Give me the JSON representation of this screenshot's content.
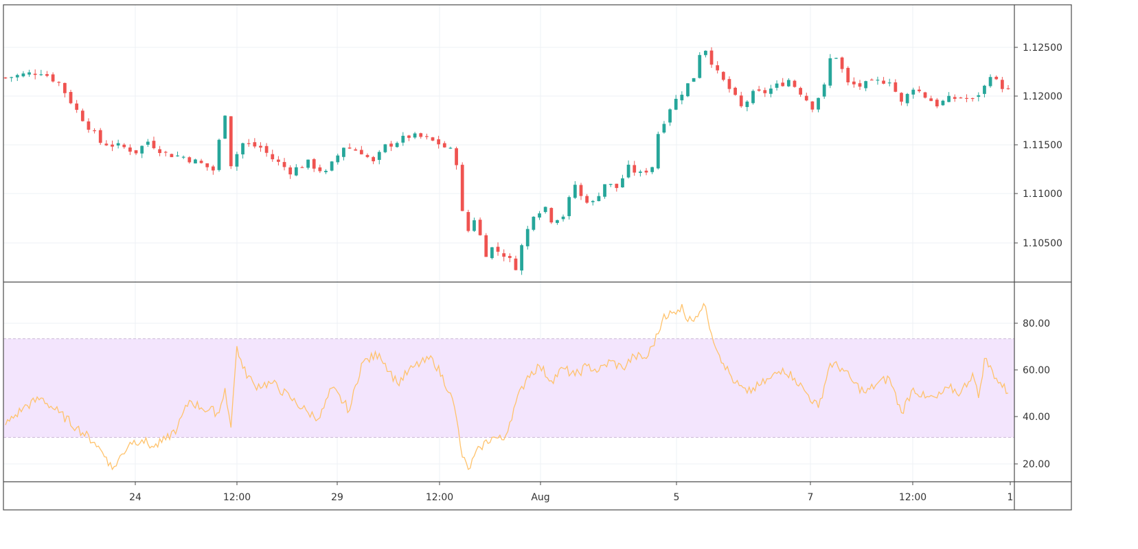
{
  "chart_data": [
    {
      "type": "candlestick",
      "title": "",
      "x": {
        "tick_labels": [
          "24",
          "12:00",
          "29",
          "12:00",
          "Aug",
          "5",
          "7",
          "12:00",
          "1"
        ]
      },
      "y": {
        "tick_labels": [
          "1.12500",
          "1.12000",
          "1.11500",
          "1.11000",
          "1.10500"
        ],
        "ylim": [
          1.1015,
          1.1285
        ]
      },
      "grid": true,
      "colors": {
        "up": "#26a69a",
        "down": "#ef5350"
      },
      "series": [
        {
          "close_path": [
            [
              0,
              1.1214
            ],
            [
              4,
              1.1218
            ],
            [
              6,
              1.122
            ],
            [
              9,
              1.1209
            ],
            [
              12,
              1.1182
            ],
            [
              16,
              1.1151
            ],
            [
              20,
              1.1146
            ],
            [
              22,
              1.1142
            ],
            [
              24,
              1.1152
            ],
            [
              27,
              1.114
            ],
            [
              30,
              1.1137
            ],
            [
              33,
              1.113
            ],
            [
              35,
              1.1124
            ],
            [
              36,
              1.1152
            ],
            [
              37,
              1.118
            ],
            [
              38,
              1.113
            ],
            [
              40,
              1.115
            ],
            [
              43,
              1.1146
            ],
            [
              45,
              1.1135
            ],
            [
              48,
              1.1123
            ],
            [
              51,
              1.1131
            ],
            [
              54,
              1.1121
            ],
            [
              57,
              1.1147
            ],
            [
              60,
              1.1142
            ],
            [
              62,
              1.1131
            ],
            [
              64,
              1.1147
            ],
            [
              66,
              1.1152
            ],
            [
              68,
              1.1157
            ],
            [
              70,
              1.1156
            ],
            [
              73,
              1.115
            ],
            [
              75,
              1.1143
            ],
            [
              76,
              1.1132
            ],
            [
              77,
              1.1082
            ],
            [
              78,
              1.1065
            ],
            [
              79,
              1.1077
            ],
            [
              80,
              1.106
            ],
            [
              81,
              1.1043
            ],
            [
              82,
              1.1048
            ],
            [
              84,
              1.1042
            ],
            [
              86,
              1.103
            ],
            [
              87,
              1.105
            ],
            [
              89,
              1.1082
            ],
            [
              91,
              1.1088
            ],
            [
              92,
              1.1076
            ],
            [
              94,
              1.108
            ],
            [
              96,
              1.111
            ],
            [
              97,
              1.1098
            ],
            [
              99,
              1.1092
            ],
            [
              101,
              1.1111
            ],
            [
              103,
              1.1107
            ],
            [
              105,
              1.1126
            ],
            [
              107,
              1.112
            ],
            [
              109,
              1.1128
            ],
            [
              110,
              1.116
            ],
            [
              112,
              1.1185
            ],
            [
              114,
              1.12
            ],
            [
              116,
              1.1215
            ],
            [
              117,
              1.1238
            ],
            [
              118,
              1.1242
            ],
            [
              120,
              1.1218
            ],
            [
              122,
              1.1203
            ],
            [
              124,
              1.1185
            ],
            [
              126,
              1.1198
            ],
            [
              128,
              1.12
            ],
            [
              130,
              1.1206
            ],
            [
              132,
              1.1212
            ],
            [
              134,
              1.12
            ],
            [
              136,
              1.1186
            ],
            [
              138,
              1.1205
            ],
            [
              139,
              1.1232
            ],
            [
              140,
              1.1235
            ],
            [
              142,
              1.1208
            ],
            [
              144,
              1.1206
            ],
            [
              147,
              1.121
            ],
            [
              149,
              1.1212
            ],
            [
              151,
              1.1189
            ],
            [
              153,
              1.1205
            ],
            [
              155,
              1.1196
            ],
            [
              157,
              1.1188
            ],
            [
              159,
              1.1193
            ],
            [
              161,
              1.1195
            ],
            [
              163,
              1.1192
            ],
            [
              165,
              1.1205
            ],
            [
              166,
              1.1218
            ],
            [
              167,
              1.121
            ],
            [
              169,
              1.1201
            ]
          ]
        }
      ]
    },
    {
      "type": "line",
      "title": "",
      "y": {
        "tick_labels": [
          "80.00",
          "60.00",
          "40.00",
          "20.00"
        ],
        "ylim": [
          12,
          93
        ]
      },
      "bands": [
        {
          "from": 30,
          "to": 70,
          "color": "#f3e5fd"
        }
      ],
      "series": [
        {
          "color": "#ffc26b",
          "path": [
            [
              0,
              35
            ],
            [
              3,
              42
            ],
            [
              6,
              46
            ],
            [
              9,
              40
            ],
            [
              12,
              34
            ],
            [
              15,
              28
            ],
            [
              17,
              22
            ],
            [
              18,
              17
            ],
            [
              21,
              28
            ],
            [
              23,
              29
            ],
            [
              25,
              26
            ],
            [
              27,
              29
            ],
            [
              29,
              34
            ],
            [
              31,
              45
            ],
            [
              33,
              42
            ],
            [
              36,
              40
            ],
            [
              37,
              50
            ],
            [
              38,
              34
            ],
            [
              39,
              67
            ],
            [
              40,
              58
            ],
            [
              42,
              51
            ],
            [
              45,
              52
            ],
            [
              48,
              46
            ],
            [
              51,
              40
            ],
            [
              53,
              38
            ],
            [
              55,
              50
            ],
            [
              58,
              41
            ],
            [
              60,
              60
            ],
            [
              63,
              64
            ],
            [
              66,
              52
            ],
            [
              69,
              59
            ],
            [
              72,
              62
            ],
            [
              75,
              48
            ],
            [
              76,
              38
            ],
            [
              77,
              22
            ],
            [
              78,
              17
            ],
            [
              80,
              26
            ],
            [
              82,
              30
            ],
            [
              84,
              29
            ],
            [
              86,
              44
            ],
            [
              88,
              55
            ],
            [
              90,
              59
            ],
            [
              92,
              53
            ],
            [
              94,
              58
            ],
            [
              96,
              55
            ],
            [
              98,
              59
            ],
            [
              100,
              57
            ],
            [
              102,
              61
            ],
            [
              104,
              58
            ],
            [
              106,
              63
            ],
            [
              108,
              62
            ],
            [
              110,
              72
            ],
            [
              111,
              80
            ],
            [
              113,
              80
            ],
            [
              114,
              84
            ],
            [
              115,
              77
            ],
            [
              117,
              81
            ],
            [
              118,
              83
            ],
            [
              119,
              72
            ],
            [
              121,
              60
            ],
            [
              123,
              52
            ],
            [
              125,
              48
            ],
            [
              127,
              51
            ],
            [
              129,
              54
            ],
            [
              131,
              58
            ],
            [
              133,
              54
            ],
            [
              135,
              48
            ],
            [
              137,
              42
            ],
            [
              139,
              60
            ],
            [
              141,
              58
            ],
            [
              143,
              52
            ],
            [
              145,
              48
            ],
            [
              147,
              52
            ],
            [
              149,
              54
            ],
            [
              151,
              40
            ],
            [
              153,
              50
            ],
            [
              155,
              46
            ],
            [
              157,
              46
            ],
            [
              159,
              50
            ],
            [
              161,
              48
            ],
            [
              163,
              56
            ],
            [
              164,
              46
            ],
            [
              165,
              62
            ],
            [
              167,
              54
            ],
            [
              169,
              48
            ]
          ]
        }
      ]
    }
  ]
}
